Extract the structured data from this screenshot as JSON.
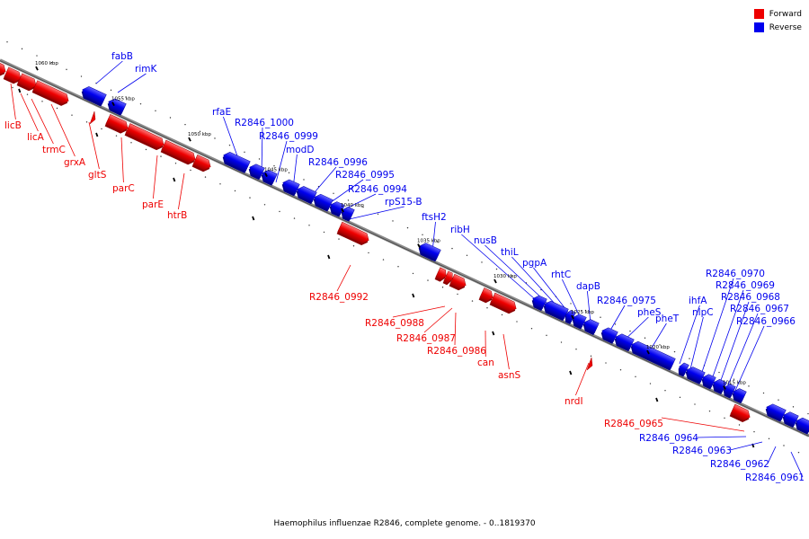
{
  "colors": {
    "forward": "#ee0000",
    "forward_dark": "#a30000",
    "reverse": "#0000ee",
    "reverse_dark": "#0000a0",
    "backbone": "#888888"
  },
  "legend": [
    {
      "label": "Forward",
      "strand": "forward"
    },
    {
      "label": "Reverse",
      "strand": "reverse"
    }
  ],
  "caption": "Haemophilus influenzae R2846, complete genome. - 0..1819370",
  "kbp_marks": [
    {
      "label": "1060 kbp",
      "kbp": 1060
    },
    {
      "label": "1055 kbp",
      "kbp": 1055
    },
    {
      "label": "1050 kbp",
      "kbp": 1050
    },
    {
      "label": "1045 kbp",
      "kbp": 1045
    },
    {
      "label": "1040 kbp",
      "kbp": 1040
    },
    {
      "label": "1035 kbp",
      "kbp": 1035
    },
    {
      "label": "1030 kbp",
      "kbp": 1030
    },
    {
      "label": "1025 kbp",
      "kbp": 1025
    },
    {
      "label": "1020 kbp",
      "kbp": 1020
    },
    {
      "label": "1015 kbp",
      "kbp": 1015
    }
  ],
  "forward_labels": [
    "licB",
    "licA",
    "trmC",
    "grxA",
    "gltS",
    "parC",
    "parE",
    "htrB",
    "R2846_0992",
    "R2846_0988",
    "R2846_0987",
    "R2846_0986",
    "can",
    "asnS",
    "nrdI",
    "R2846_0965"
  ],
  "reverse_labels": [
    "fabB",
    "rimK",
    "rfaE",
    "R2846_1000",
    "R2846_0999",
    "modD",
    "R2846_0996",
    "R2846_0995",
    "R2846_0994",
    "rpS15-B",
    "ftsH2",
    "ribH",
    "nusB",
    "thiL",
    "pgpA",
    "rhtC",
    "dapB",
    "R2846_0975",
    "pheS",
    "pheT",
    "ihfA",
    "nlpC",
    "R2846_0970",
    "R2846_0969",
    "R2846_0968",
    "R2846_0967",
    "R2846_0966",
    "R2846_0964",
    "R2846_0963",
    "R2846_0962",
    "R2846_0961"
  ]
}
